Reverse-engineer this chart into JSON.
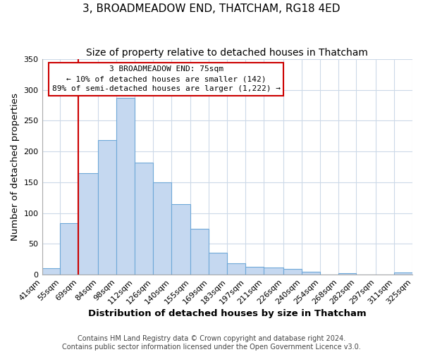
{
  "title": "3, BROADMEADOW END, THATCHAM, RG18 4ED",
  "subtitle": "Size of property relative to detached houses in Thatcham",
  "xlabel": "Distribution of detached houses by size in Thatcham",
  "ylabel": "Number of detached properties",
  "bar_labels": [
    "41sqm",
    "55sqm",
    "69sqm",
    "84sqm",
    "98sqm",
    "112sqm",
    "126sqm",
    "140sqm",
    "155sqm",
    "169sqm",
    "183sqm",
    "197sqm",
    "211sqm",
    "226sqm",
    "240sqm",
    "254sqm",
    "268sqm",
    "282sqm",
    "297sqm",
    "311sqm",
    "325sqm"
  ],
  "bar_values": [
    10,
    84,
    165,
    218,
    287,
    182,
    150,
    114,
    75,
    35,
    18,
    13,
    12,
    9,
    5,
    0,
    2,
    0,
    0,
    3
  ],
  "bar_color": "#c5d8f0",
  "bar_edge_color": "#6ea8d8",
  "ylim": [
    0,
    350
  ],
  "yticks": [
    0,
    50,
    100,
    150,
    200,
    250,
    300,
    350
  ],
  "vline_x": 69,
  "property_line_label": "3 BROADMEADOW END: 75sqm",
  "annotation_line1": "← 10% of detached houses are smaller (142)",
  "annotation_line2": "89% of semi-detached houses are larger (1,222) →",
  "annotation_box_color": "#ffffff",
  "annotation_box_edge": "#cc0000",
  "vline_color": "#cc0000",
  "footer1": "Contains HM Land Registry data © Crown copyright and database right 2024.",
  "footer2": "Contains public sector information licensed under the Open Government Licence v3.0.",
  "bg_color": "#ffffff",
  "grid_color": "#ccd9e8",
  "title_fontsize": 11,
  "subtitle_fontsize": 10,
  "axis_label_fontsize": 9.5,
  "tick_fontsize": 8,
  "footer_fontsize": 7,
  "annotation_fontsize": 8,
  "bin_edges": [
    41,
    55,
    69,
    84,
    98,
    112,
    126,
    140,
    155,
    169,
    183,
    197,
    211,
    226,
    240,
    254,
    268,
    282,
    297,
    311,
    325
  ]
}
